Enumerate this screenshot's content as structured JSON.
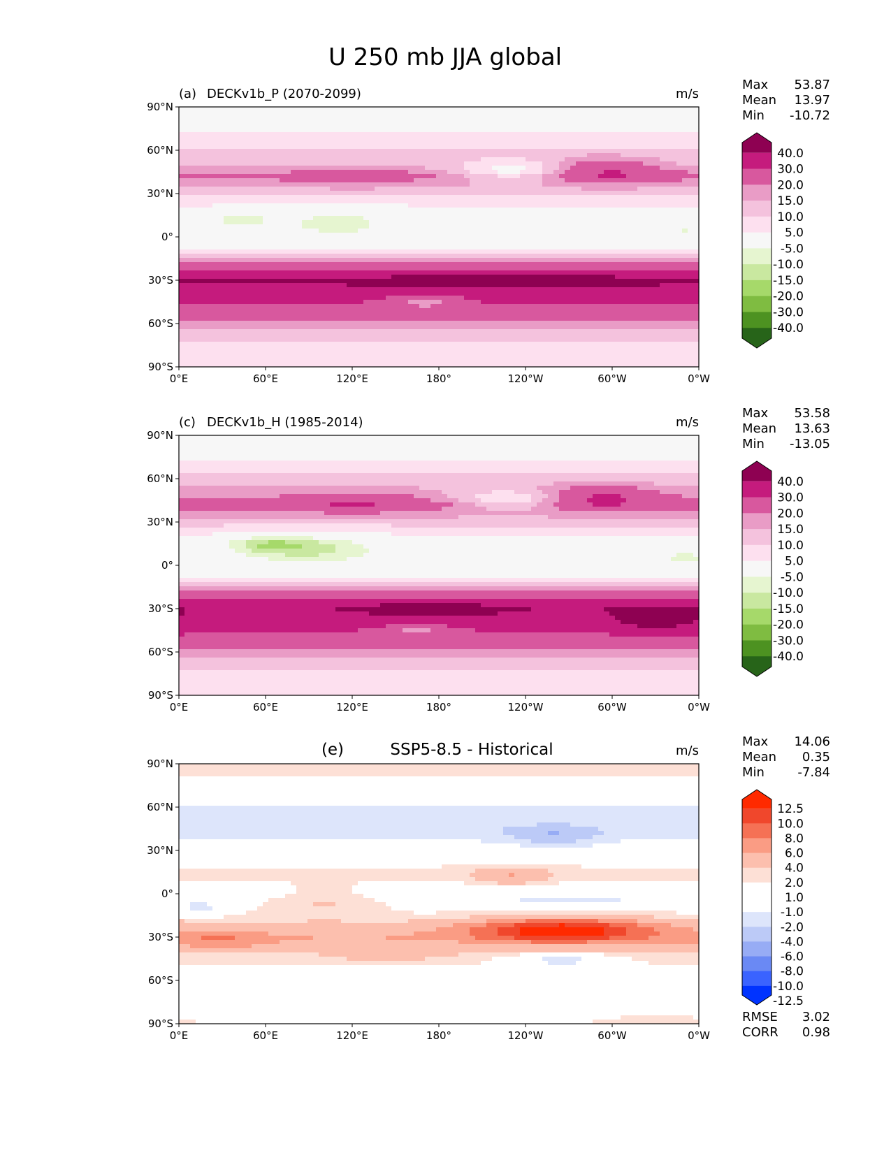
{
  "figure": {
    "title": "U 250 mb JJA global"
  },
  "axes": {
    "yticks": [
      "90°N",
      "60°N",
      "30°N",
      "0°",
      "30°S",
      "60°S",
      "90°S"
    ],
    "xticks": [
      "0°E",
      "60°E",
      "120°E",
      "180°",
      "120°W",
      "60°W",
      "0°W"
    ]
  },
  "colors": {
    "field": [
      "#276419",
      "#4d9221",
      "#7fbc41",
      "#a6d96a",
      "#c9e8a0",
      "#e6f5d0",
      "#f7f7f7",
      "#fde0ef",
      "#f4c2dd",
      "#e99cc6",
      "#d8589e",
      "#c51b7d",
      "#8e0152"
    ],
    "diff": [
      "#0033ff",
      "#3a63ff",
      "#6a89f4",
      "#97acf5",
      "#bccaf7",
      "#dde5fb",
      "#ffffff",
      "#ffffff",
      "#fde0d6",
      "#fcbfae",
      "#fa9c84",
      "#f57155",
      "#f0472c",
      "#ff2a00"
    ]
  },
  "chart_data": [
    {
      "type": "heatmap",
      "panel": "(a)",
      "title": "DECKv1b_P (2070-2099)",
      "units": "m/s",
      "stats": [
        {
          "label": "Max",
          "value": "53.87"
        },
        {
          "label": "Mean",
          "value": "13.97"
        },
        {
          "label": "Min",
          "value": "-10.72"
        }
      ],
      "colorbar_labels": [
        "40.0",
        "30.0",
        "20.0",
        "15.0",
        "10.0",
        "5.0",
        "-5.0",
        "-10.0",
        "-15.0",
        "-20.0",
        "-30.0",
        "-40.0"
      ],
      "bands": [
        {
          "lat": 80,
          "u": 2
        },
        {
          "lat": 65,
          "u": 8
        },
        {
          "lat": 50,
          "u": 14
        },
        {
          "lat": 42,
          "u": 22
        },
        {
          "lat": 30,
          "u": 11
        },
        {
          "lat": 15,
          "u": 2
        },
        {
          "lat": 5,
          "u": 1
        },
        {
          "lat": -8,
          "u": 4
        },
        {
          "lat": -18,
          "u": 22
        },
        {
          "lat": -30,
          "u": 42
        },
        {
          "lat": -42,
          "u": 33
        },
        {
          "lat": -55,
          "u": 24
        },
        {
          "lat": -68,
          "u": 12
        },
        {
          "lat": -82,
          "u": 6
        }
      ],
      "blobs": [
        {
          "lon": 110,
          "lat": 10,
          "rx": 45,
          "ry": 12,
          "u": -7
        },
        {
          "lon": 40,
          "lat": 12,
          "rx": 25,
          "ry": 8,
          "u": -6
        },
        {
          "lon": 350,
          "lat": 3,
          "rx": 20,
          "ry": 6,
          "u": -5
        },
        {
          "lon": 230,
          "lat": 45,
          "rx": 40,
          "ry": 7,
          "u": 4
        },
        {
          "lon": 295,
          "lat": 47,
          "rx": 35,
          "ry": 9,
          "u": 30
        },
        {
          "lon": 120,
          "lat": 42,
          "rx": 35,
          "ry": 7,
          "u": 28
        },
        {
          "lon": 225,
          "lat": -30,
          "rx": 70,
          "ry": 6,
          "u": 50
        },
        {
          "lon": 170,
          "lat": -45,
          "rx": 25,
          "ry": 5,
          "u": 18
        }
      ]
    },
    {
      "type": "heatmap",
      "panel": "(c)",
      "title": "DECKv1b_H (1985-2014)",
      "units": "m/s",
      "stats": [
        {
          "label": "Max",
          "value": "53.58"
        },
        {
          "label": "Mean",
          "value": "13.63"
        },
        {
          "label": "Min",
          "value": "-13.05"
        }
      ],
      "colorbar_labels": [
        "40.0",
        "30.0",
        "20.0",
        "15.0",
        "10.0",
        "5.0",
        "-5.0",
        "-10.0",
        "-15.0",
        "-20.0",
        "-30.0",
        "-40.0"
      ],
      "bands": [
        {
          "lat": 80,
          "u": 2
        },
        {
          "lat": 65,
          "u": 9
        },
        {
          "lat": 50,
          "u": 17
        },
        {
          "lat": 42,
          "u": 24
        },
        {
          "lat": 30,
          "u": 12
        },
        {
          "lat": 15,
          "u": 1
        },
        {
          "lat": 5,
          "u": 0
        },
        {
          "lat": -8,
          "u": 3
        },
        {
          "lat": -18,
          "u": 20
        },
        {
          "lat": -30,
          "u": 38
        },
        {
          "lat": -42,
          "u": 32
        },
        {
          "lat": -55,
          "u": 24
        },
        {
          "lat": -68,
          "u": 12
        },
        {
          "lat": -82,
          "u": 6
        }
      ],
      "blobs": [
        {
          "lon": 90,
          "lat": 12,
          "rx": 45,
          "ry": 10,
          "u": -12
        },
        {
          "lon": 60,
          "lat": 15,
          "rx": 25,
          "ry": 6,
          "u": -9
        },
        {
          "lon": 350,
          "lat": 5,
          "rx": 20,
          "ry": 7,
          "u": -6
        },
        {
          "lon": 230,
          "lat": 45,
          "rx": 40,
          "ry": 7,
          "u": 6
        },
        {
          "lon": 290,
          "lat": 48,
          "rx": 38,
          "ry": 8,
          "u": 32
        },
        {
          "lon": 120,
          "lat": 44,
          "rx": 40,
          "ry": 7,
          "u": 30
        },
        {
          "lon": 175,
          "lat": -30,
          "rx": 55,
          "ry": 6,
          "u": 48
        },
        {
          "lon": 330,
          "lat": -38,
          "rx": 35,
          "ry": 10,
          "u": 45
        },
        {
          "lon": 165,
          "lat": -45,
          "rx": 20,
          "ry": 4,
          "u": 18
        }
      ]
    },
    {
      "type": "heatmap",
      "panel": "(e)",
      "title": "SSP5-8.5 - Historical",
      "units": "m/s",
      "stats": [
        {
          "label": "Max",
          "value": "14.06"
        },
        {
          "label": "Mean",
          "value": "0.35"
        },
        {
          "label": "Min",
          "value": "-7.84"
        }
      ],
      "colorbar_labels": [
        "12.5",
        "10.0",
        "8.0",
        "6.0",
        "4.0",
        "2.0",
        "1.0",
        "-1.0",
        "-2.0",
        "-4.0",
        "-6.0",
        "-8.0",
        "-10.0",
        "-12.5"
      ],
      "footer": [
        {
          "label": "RMSE",
          "value": "3.02"
        },
        {
          "label": "CORR",
          "value": "0.98"
        }
      ],
      "bands": [
        {
          "lat": 85,
          "u": 1.5
        },
        {
          "lat": 70,
          "u": 0
        },
        {
          "lat": 55,
          "u": -3
        },
        {
          "lat": 45,
          "u": -3
        },
        {
          "lat": 30,
          "u": -0.5
        },
        {
          "lat": 15,
          "u": 1.5
        },
        {
          "lat": 0,
          "u": 0
        },
        {
          "lat": -15,
          "u": 1
        },
        {
          "lat": -30,
          "u": 4
        },
        {
          "lat": -42,
          "u": 1.5
        },
        {
          "lat": -55,
          "u": 0.5
        },
        {
          "lat": -70,
          "u": 0
        },
        {
          "lat": -85,
          "u": 1
        }
      ],
      "blobs": [
        {
          "lon": 265,
          "lat": -25,
          "rx": 60,
          "ry": 8,
          "u": 12
        },
        {
          "lon": 30,
          "lat": -33,
          "rx": 35,
          "ry": 6,
          "u": 6
        },
        {
          "lon": 145,
          "lat": -42,
          "rx": 45,
          "ry": 5,
          "u": 3
        },
        {
          "lon": 270,
          "lat": -5,
          "rx": 60,
          "ry": 4,
          "u": -3
        },
        {
          "lon": 265,
          "lat": -46,
          "rx": 30,
          "ry": 4,
          "u": -3
        },
        {
          "lon": 150,
          "lat": -72,
          "rx": 30,
          "ry": 4,
          "u": -2
        },
        {
          "lon": 150,
          "lat": 45,
          "rx": 60,
          "ry": 8,
          "u": -4
        },
        {
          "lon": 260,
          "lat": 40,
          "rx": 35,
          "ry": 7,
          "u": -6
        },
        {
          "lon": 230,
          "lat": 12,
          "rx": 25,
          "ry": 6,
          "u": 4
        },
        {
          "lon": 100,
          "lat": -5,
          "rx": 40,
          "ry": 10,
          "u": 2
        },
        {
          "lon": 15,
          "lat": -10,
          "rx": 15,
          "ry": 5,
          "u": -3
        }
      ]
    }
  ]
}
